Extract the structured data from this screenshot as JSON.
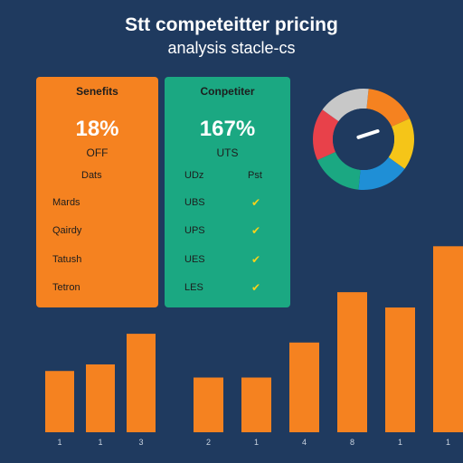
{
  "title": "Stt competeitter pricing",
  "subtitle": "analysis stacle-cs",
  "cards": {
    "left": {
      "heading": "Senefits",
      "big_value": "18%",
      "small_label": "OFF",
      "col_header": "Dats",
      "rows": [
        "Mards",
        "Qairdy",
        "Tatush",
        "Tetron"
      ]
    },
    "right": {
      "heading": "Conpetiter",
      "big_value": "167%",
      "small_label": "UTS",
      "col_header_1": "UDz",
      "col_header_2": "Pst",
      "rows": [
        "UBS",
        "UPS",
        "UES",
        "LES"
      ]
    }
  },
  "colors": {
    "background": "#1f3a5f",
    "bar": "#f58220",
    "card_left": "#f58220",
    "card_right": "#1ba882",
    "check": "#f5d21b"
  },
  "gauge": {
    "segments": [
      {
        "color": "#f58220"
      },
      {
        "color": "#f5c518"
      },
      {
        "color": "#1f8fd6"
      },
      {
        "color": "#1ba882"
      },
      {
        "color": "#e8414a"
      },
      {
        "color": "#c8c8c8"
      }
    ],
    "needle_value": 0.62
  },
  "chart_data": [
    {
      "type": "bar",
      "categories": [
        "1",
        "1",
        "3"
      ],
      "values": [
        2.8,
        3.1,
        4.5
      ],
      "ylim": [
        0,
        10
      ],
      "grid": false
    },
    {
      "type": "bar",
      "categories": [
        "2",
        "1",
        "4",
        "8",
        "1",
        "1"
      ],
      "values": [
        2.5,
        2.5,
        4.1,
        6.4,
        5.7,
        8.5
      ],
      "ylim": [
        0,
        10
      ],
      "grid": false
    }
  ]
}
